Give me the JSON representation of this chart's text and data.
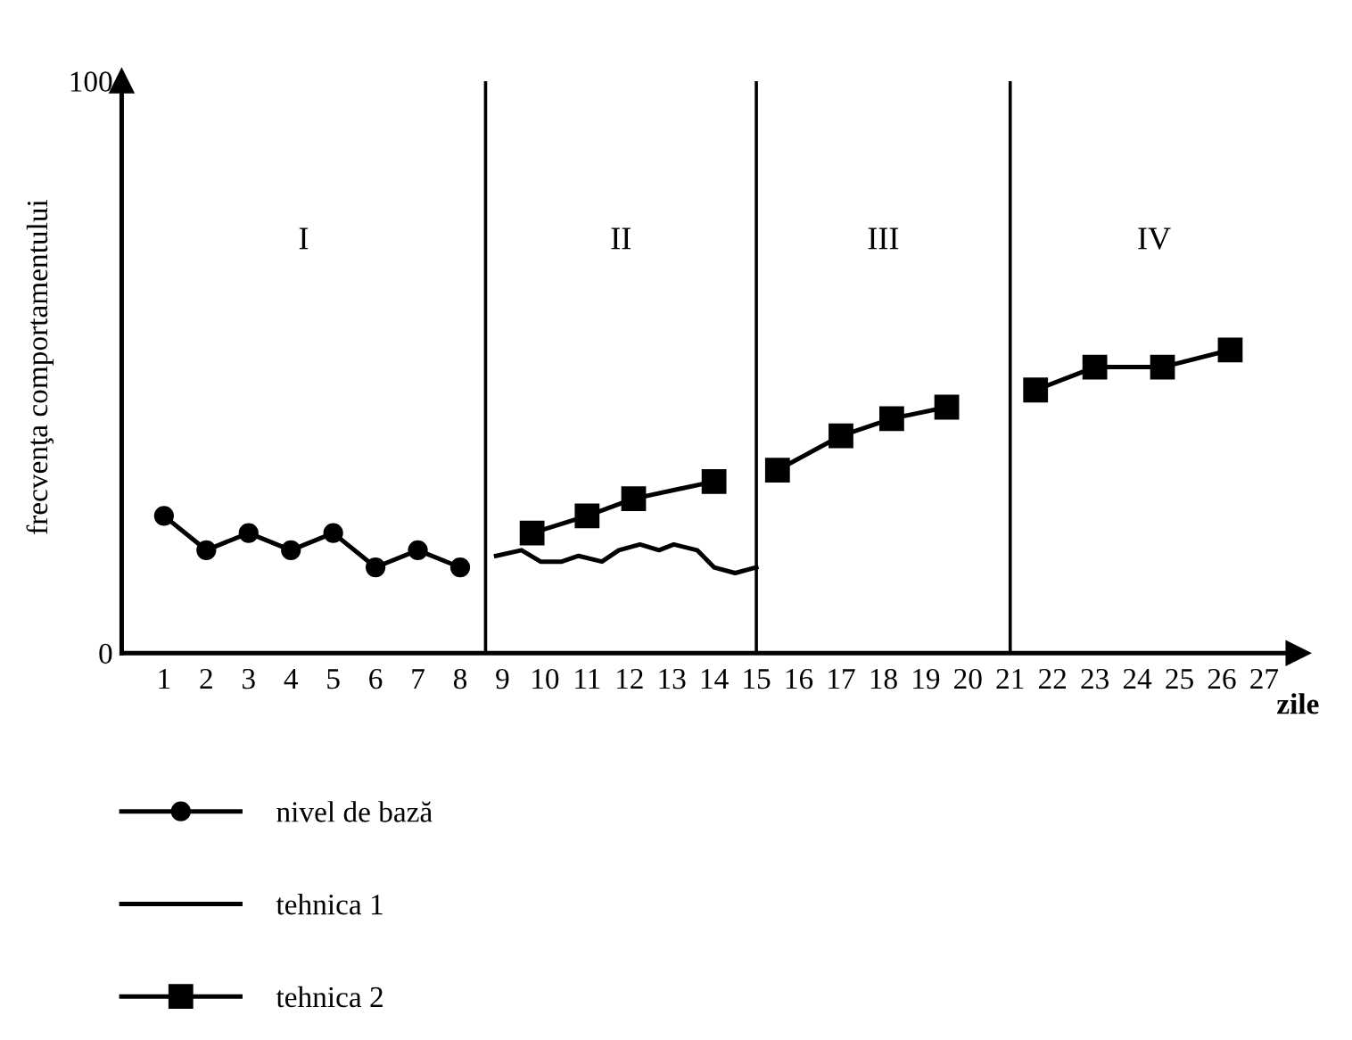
{
  "chart_data": {
    "type": "line",
    "xlabel": "zile",
    "ylabel": "frecvenţa comportamentului",
    "xlim": [
      0,
      27.8
    ],
    "ylim": [
      0,
      100
    ],
    "xticks": [
      1,
      2,
      3,
      4,
      5,
      6,
      7,
      8,
      9,
      10,
      11,
      12,
      13,
      14,
      15,
      16,
      17,
      18,
      19,
      20,
      21,
      22,
      23,
      24,
      25,
      26,
      27
    ],
    "yticks": [
      0,
      100
    ],
    "ref_lines": [
      {
        "axis": "x",
        "value": 8.6
      },
      {
        "axis": "x",
        "value": 15
      },
      {
        "axis": "x",
        "value": 21
      }
    ],
    "annotations": [
      "I",
      "II",
      "III",
      "IV"
    ],
    "legend": "bottom",
    "grid": false,
    "series": [
      {
        "name": "nivel de bază",
        "color": "#000000",
        "marker": "circle",
        "x": [
          1,
          2,
          3,
          4,
          5,
          6,
          7,
          8
        ],
        "values": [
          24,
          18,
          21,
          18,
          21,
          15,
          18,
          15
        ]
      },
      {
        "name": "tehnica 1",
        "color": "#000000",
        "marker": "none",
        "x": [
          8.85,
          9.45,
          9.9,
          10.4,
          10.8,
          11.35,
          11.75,
          12.25,
          12.7,
          13.05,
          13.6,
          14.0,
          14.5,
          15.0
        ],
        "values": [
          17,
          18,
          16,
          16,
          17,
          16,
          18,
          19,
          18,
          19,
          18,
          15,
          14,
          15
        ]
      },
      {
        "name": "tehnica 2",
        "color": "#000000",
        "marker": "square",
        "x": [
          9.7,
          11,
          12.1,
          14,
          14.5,
          15.5,
          17,
          18.2,
          19.5,
          20.5,
          21.6,
          23,
          24.6,
          26.2
        ],
        "values": [
          21,
          24,
          27,
          30,
          null,
          32,
          38,
          41,
          43,
          null,
          46,
          50,
          50,
          53
        ]
      }
    ]
  }
}
